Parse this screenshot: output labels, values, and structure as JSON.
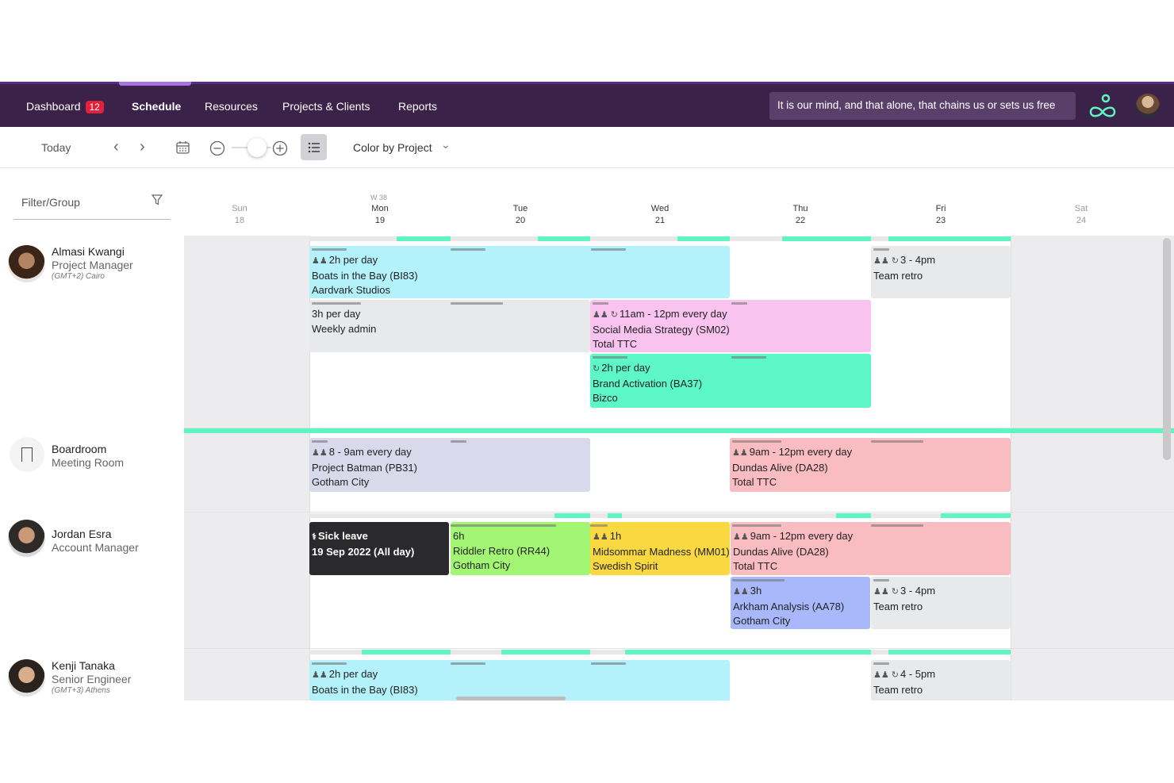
{
  "nav": {
    "items": [
      {
        "label": "Dashboard",
        "badge": "12"
      },
      {
        "label": "Schedule"
      },
      {
        "label": "Resources"
      },
      {
        "label": "Projects & Clients"
      },
      {
        "label": "Reports"
      }
    ],
    "active": "Schedule",
    "quote": "It is our mind, and that alone, that chains us or sets us free",
    "logo_icon": "infinity-logo-icon"
  },
  "toolbar": {
    "today": "Today",
    "color_by": "Color by Project"
  },
  "filter": {
    "label": "Filter/Group"
  },
  "week": {
    "label": "W 38",
    "days": [
      {
        "name": "Sun",
        "num": "18"
      },
      {
        "name": "Mon",
        "num": "19"
      },
      {
        "name": "Tue",
        "num": "20"
      },
      {
        "name": "Wed",
        "num": "21"
      },
      {
        "name": "Thu",
        "num": "22"
      },
      {
        "name": "Fri",
        "num": "23"
      },
      {
        "name": "Sat",
        "num": "24"
      }
    ]
  },
  "people": [
    {
      "name": "Almasi Kwangi",
      "role": "Project Manager",
      "tz": "(GMT+2) Cairo"
    },
    {
      "name": "Boardroom",
      "role": "Meeting Room"
    },
    {
      "name": "Jordan Esra",
      "role": "Account Manager"
    },
    {
      "name": "Kenji Tanaka",
      "role": "Senior Engineer",
      "tz": "(GMT+3) Athens"
    }
  ],
  "tasks": [
    {
      "id": "t1",
      "l1": "2h per day",
      "l2": "Boats in the Bay (BI83)",
      "l3": "Aardvark Studios",
      "icon": "people-icon",
      "color": "#b3f1fb"
    },
    {
      "id": "t2",
      "l1": "3 - 4pm",
      "l2": "Team retro",
      "icon": "people-repeat-icon",
      "color": "#e8e9eb"
    },
    {
      "id": "t3",
      "l1": "3h per day",
      "l2": "Weekly admin",
      "color": "#e8e9eb"
    },
    {
      "id": "t4",
      "l1": "11am - 12pm every day",
      "l2": "Social Media Strategy (SM02)",
      "l3": "Total TTC",
      "icon": "people-repeat-icon",
      "color": "#f9c3ef"
    },
    {
      "id": "t5",
      "l1": "2h per day",
      "l2": "Brand Activation (BA37)",
      "l3": "Bizco",
      "icon": "repeat-icon",
      "color": "#5cf7c5"
    },
    {
      "id": "t6",
      "l1": "8 - 9am every day",
      "l2": "Project Batman (PB31)",
      "l3": "Gotham City",
      "icon": "people-icon",
      "color": "#d8daeb"
    },
    {
      "id": "t7",
      "l1": "9am - 12pm every day",
      "l2": "Dundas Alive (DA28)",
      "l3": "Total TTC",
      "icon": "people-icon",
      "color": "#f9bcc0"
    },
    {
      "id": "t8",
      "l1": "Sick leave",
      "l2": "19 Sep 2022 (All day)",
      "icon": "stethoscope-icon",
      "color": "#2a2a2c"
    },
    {
      "id": "t9",
      "l1": "6h",
      "l2": "Riddler Retro (RR44)",
      "l3": "Gotham City",
      "color": "#a3f673"
    },
    {
      "id": "t10",
      "l1": "1h",
      "l2": "Midsommar Madness (MM01)",
      "l3": "Swedish Spirit",
      "icon": "people-icon",
      "color": "#f9d93f"
    },
    {
      "id": "t11",
      "l1": "9am - 12pm every day",
      "l2": "Dundas Alive (DA28)",
      "l3": "Total TTC",
      "icon": "people-icon",
      "color": "#f9bcc0"
    },
    {
      "id": "t12",
      "l1": "3h",
      "l2": "Arkham Analysis (AA78)",
      "l3": "Gotham City",
      "icon": "people-icon",
      "color": "#a8b8fa"
    },
    {
      "id": "t13",
      "l1": "3 - 4pm",
      "l2": "Team retro",
      "icon": "people-repeat-icon",
      "color": "#e8e9eb"
    },
    {
      "id": "t14",
      "l1": "2h per day",
      "l2": "Boats in the Bay (BI83)",
      "icon": "people-icon",
      "color": "#b3f1fb"
    },
    {
      "id": "t15",
      "l1": "4 - 5pm",
      "l2": "Team retro",
      "icon": "people-repeat-icon",
      "color": "#e8e9eb"
    }
  ]
}
